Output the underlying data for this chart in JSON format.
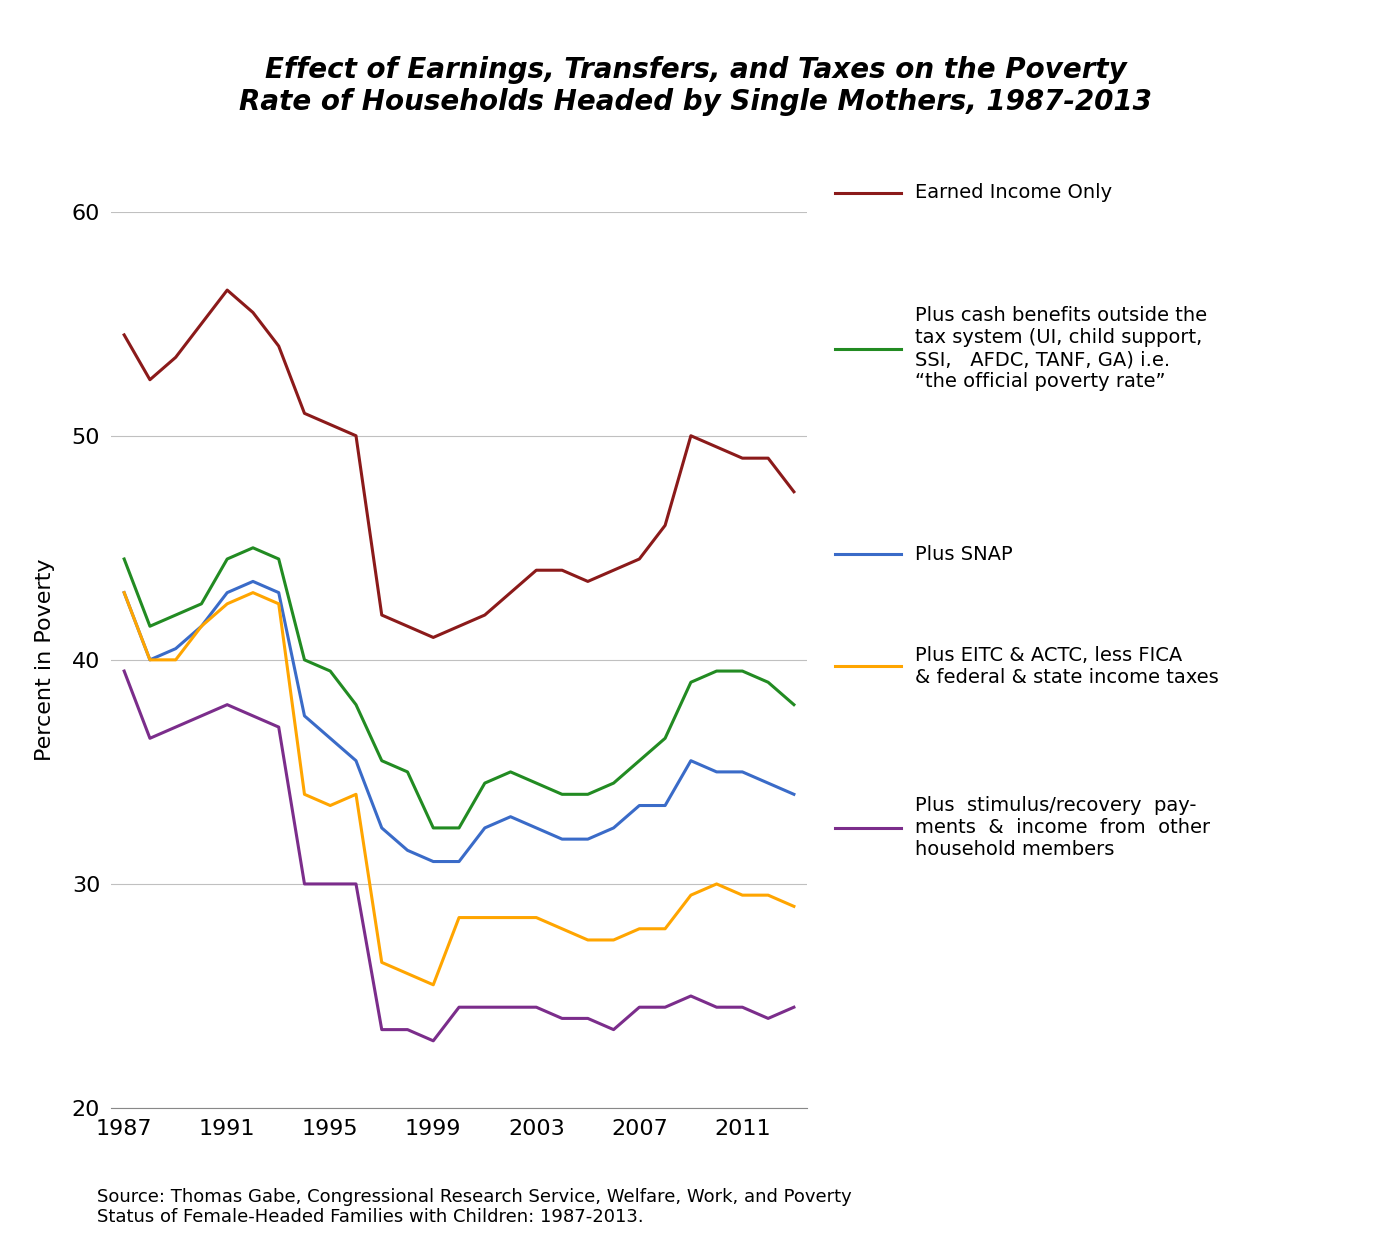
{
  "title": "Effect of Earnings, Transfers, and Taxes on the Poverty\nRate of Households Headed by Single Mothers, 1987-2013",
  "ylabel": "Percent in Poverty",
  "ylim": [
    20,
    60
  ],
  "yticks": [
    20,
    30,
    40,
    50,
    60
  ],
  "source_text": "Source: Thomas Gabe, Congressional Research Service, Welfare, Work, and Poverty\nStatus of Female-Headed Families with Children: 1987-2013.",
  "years": [
    1987,
    1988,
    1989,
    1990,
    1991,
    1992,
    1993,
    1994,
    1995,
    1996,
    1997,
    1998,
    1999,
    2000,
    2001,
    2002,
    2003,
    2004,
    2005,
    2006,
    2007,
    2008,
    2009,
    2010,
    2011,
    2012,
    2013
  ],
  "xtick_positions": [
    1987,
    1991,
    1995,
    1999,
    2003,
    2007,
    2011
  ],
  "series": [
    {
      "label": "Earned Income Only",
      "color": "#8B1A1A",
      "values": [
        54.5,
        52.5,
        53.5,
        55.0,
        56.5,
        55.5,
        54.0,
        51.0,
        50.5,
        50.0,
        42.0,
        41.5,
        41.0,
        41.5,
        42.0,
        43.0,
        44.0,
        44.0,
        43.5,
        44.0,
        44.5,
        46.0,
        50.0,
        49.5,
        49.0,
        49.0,
        47.5
      ]
    },
    {
      "label": "Plus cash benefits outside the\ntax system (UI, child support,\nSSI,   AFDC, TANF, GA) i.e.\n“the official poverty rate”",
      "color": "#228B22",
      "values": [
        44.5,
        41.5,
        42.0,
        42.5,
        44.5,
        45.0,
        44.5,
        40.0,
        39.5,
        38.0,
        35.5,
        35.0,
        32.5,
        32.5,
        34.5,
        35.0,
        34.5,
        34.0,
        34.0,
        34.5,
        35.5,
        36.5,
        39.0,
        39.5,
        39.5,
        39.0,
        38.0
      ]
    },
    {
      "label": "Plus SNAP",
      "color": "#3A6BC8",
      "values": [
        43.0,
        40.0,
        40.5,
        41.5,
        43.0,
        43.5,
        43.0,
        37.5,
        36.5,
        35.5,
        32.5,
        31.5,
        31.0,
        31.0,
        32.5,
        33.0,
        32.5,
        32.0,
        32.0,
        32.5,
        33.5,
        33.5,
        35.5,
        35.0,
        35.0,
        34.5,
        34.0
      ]
    },
    {
      "label": "Plus EITC & ACTC, less FICA\n& federal & state income taxes",
      "color": "#FFA500",
      "values": [
        43.0,
        40.0,
        40.0,
        41.5,
        42.5,
        43.0,
        42.5,
        34.0,
        33.5,
        34.0,
        26.5,
        26.0,
        25.5,
        28.5,
        28.5,
        28.5,
        28.5,
        28.0,
        27.5,
        27.5,
        28.0,
        28.0,
        29.5,
        30.0,
        29.5,
        29.5,
        29.0
      ]
    },
    {
      "label": "Plus  stimulus/recovery  pay-\nments  &  income  from  other\nhousehold members",
      "color": "#7B2D8B",
      "values": [
        39.5,
        36.5,
        37.0,
        37.5,
        38.0,
        37.5,
        37.0,
        30.0,
        30.0,
        30.0,
        23.5,
        23.5,
        23.0,
        24.5,
        24.5,
        24.5,
        24.5,
        24.0,
        24.0,
        23.5,
        24.5,
        24.5,
        25.0,
        24.5,
        24.5,
        24.0,
        24.5
      ]
    }
  ]
}
